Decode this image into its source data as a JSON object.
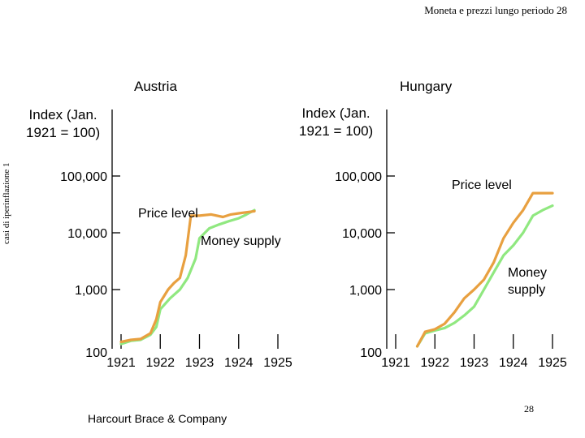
{
  "header": {
    "text": "Moneta e prezzi lungo periodo  28"
  },
  "side_label": {
    "text": "casi di iperinflazione 1"
  },
  "footer": {
    "left": "Harcourt Brace & Company",
    "page_number": "28"
  },
  "colors": {
    "price_level": "#e8a040",
    "money_supply": "#90e880",
    "axis": "#000000"
  },
  "chart_data": [
    {
      "type": "line",
      "title": "Austria",
      "ylabel": "Index (Jan. 1921 = 100)",
      "y_scale": "log",
      "ylim": [
        100,
        100000
      ],
      "y_ticks": [
        100,
        1000,
        10000,
        100000
      ],
      "y_tick_labels": [
        "100",
        "1,000",
        "10,000",
        "100,000"
      ],
      "xlim": [
        1921,
        1925
      ],
      "x_ticks": [
        1921,
        1922,
        1923,
        1924,
        1925
      ],
      "x_tick_labels": [
        "1921",
        "1922",
        "1923",
        "1924",
        "1925"
      ],
      "annotations": [
        "Price level",
        "Money supply"
      ],
      "series": [
        {
          "name": "Price level",
          "color": "#e8a040",
          "x": [
            1921.0,
            1921.25,
            1921.5,
            1921.75,
            1921.9,
            1922.0,
            1922.2,
            1922.35,
            1922.5,
            1922.65,
            1922.78,
            1923.0,
            1923.3,
            1923.6,
            1923.8,
            1924.0,
            1924.2,
            1924.4
          ],
          "y": [
            120,
            130,
            135,
            170,
            300,
            600,
            1000,
            1300,
            1600,
            4000,
            20000,
            20000,
            21000,
            19000,
            21000,
            22000,
            23000,
            24000
          ]
        },
        {
          "name": "Money supply",
          "color": "#90e880",
          "x": [
            1921.0,
            1921.25,
            1921.5,
            1921.75,
            1921.9,
            1922.0,
            1922.25,
            1922.5,
            1922.7,
            1922.9,
            1923.0,
            1923.25,
            1923.5,
            1923.75,
            1924.0,
            1924.2,
            1924.4
          ],
          "y": [
            110,
            125,
            130,
            160,
            220,
            450,
            700,
            1000,
            1600,
            3500,
            8000,
            12000,
            14000,
            16000,
            18000,
            21000,
            25000
          ]
        }
      ]
    },
    {
      "type": "line",
      "title": "Hungary",
      "ylabel": "Index (Jan. 1921 = 100)",
      "y_scale": "log",
      "ylim": [
        100,
        100000
      ],
      "y_ticks": [
        100,
        1000,
        10000,
        100000
      ],
      "y_tick_labels": [
        "100",
        "1,000",
        "10,000",
        "100,000"
      ],
      "xlim": [
        1921,
        1925
      ],
      "x_ticks": [
        1921,
        1922,
        1923,
        1924,
        1925
      ],
      "x_tick_labels": [
        "1921",
        "1922",
        "1923",
        "1924",
        "1925"
      ],
      "annotations": [
        "Price level",
        "Money supply"
      ],
      "series": [
        {
          "name": "Price level",
          "color": "#e8a040",
          "x": [
            1921.55,
            1921.75,
            1922.0,
            1922.25,
            1922.5,
            1922.75,
            1923.0,
            1923.25,
            1923.5,
            1923.75,
            1924.0,
            1924.25,
            1924.5,
            1924.75,
            1925.0
          ],
          "y": [
            100,
            180,
            200,
            250,
            400,
            700,
            1000,
            1500,
            3000,
            8000,
            15000,
            25000,
            50000,
            50000,
            50000
          ]
        },
        {
          "name": "Money supply",
          "color": "#90e880",
          "x": [
            1921.55,
            1921.75,
            1922.0,
            1922.25,
            1922.5,
            1922.75,
            1923.0,
            1923.25,
            1923.5,
            1923.75,
            1924.0,
            1924.25,
            1924.5,
            1924.75,
            1925.0
          ],
          "y": [
            100,
            170,
            190,
            210,
            260,
            350,
            500,
            1000,
            2000,
            4000,
            6000,
            10000,
            20000,
            25000,
            30000
          ]
        }
      ]
    }
  ]
}
